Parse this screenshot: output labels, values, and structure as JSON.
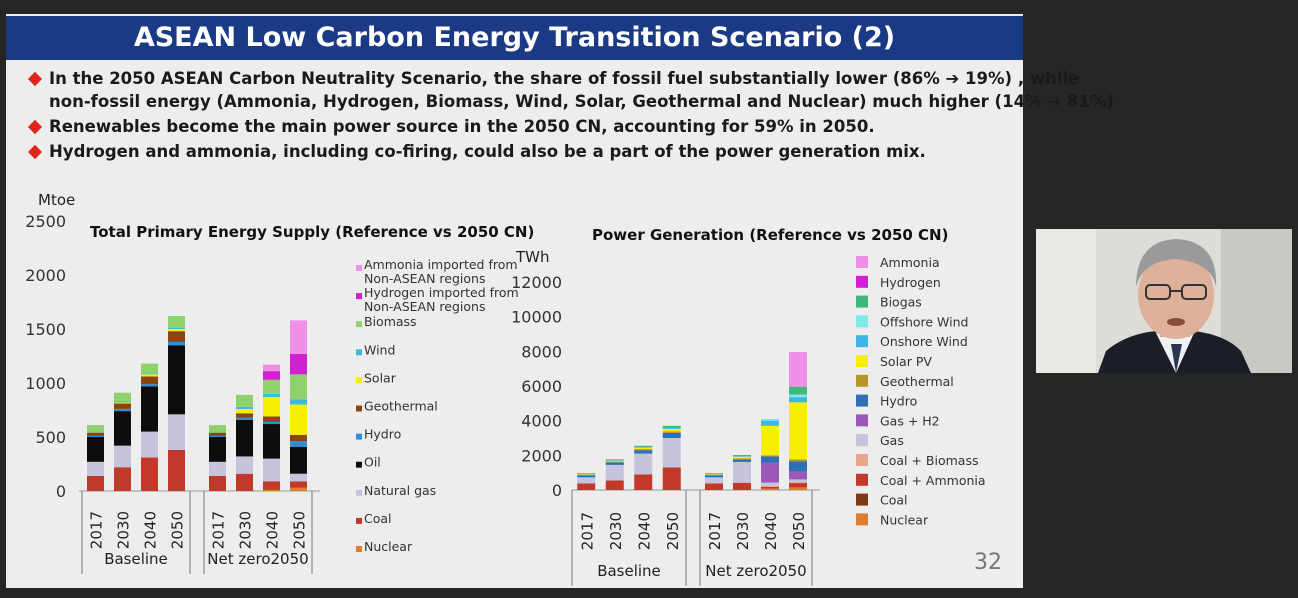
{
  "slide": {
    "title": "ASEAN Low Carbon Energy Transition Scenario (2)",
    "bullets": [
      [
        "In the 2050 ASEAN Carbon Neutrality Scenario, the share of fossil fuel substantially lower (86% ➔ 19%) , while",
        "non-fossil energy (Ammonia, Hydrogen, Biomass, Wind, Solar, Geothermal and Nuclear) much higher (14% ➔ 81%)"
      ],
      [
        "Renewables become the main power source in the 2050 CN, accounting for 59% in 2050."
      ],
      [
        "Hydrogen and ammonia, including co-firing, could also be a part of the power generation mix."
      ]
    ],
    "slide_number": "32"
  },
  "chart_data": [
    {
      "type": "bar",
      "stacked": true,
      "title": "Total Primary Energy Supply (Reference vs 2050 CN)",
      "ylabel": "Mtoe",
      "ylim": [
        0,
        2500
      ],
      "yticks": [
        0,
        500,
        1000,
        1500,
        2000,
        2500
      ],
      "groups": [
        {
          "name": "Baseline",
          "categories": [
            "2017",
            "2030",
            "2040",
            "2050"
          ]
        },
        {
          "name": "Net zero2050",
          "categories": [
            "2017",
            "2030",
            "2040",
            "2050"
          ]
        }
      ],
      "legend_position": "right",
      "series": [
        {
          "name": "Nuclear",
          "color": "#d9822b",
          "values": [
            0,
            0,
            0,
            0,
            0,
            0,
            10,
            30
          ]
        },
        {
          "name": "Coal",
          "color": "#c0392b",
          "values": [
            140,
            220,
            310,
            380,
            140,
            160,
            80,
            60
          ]
        },
        {
          "name": "Natural gas",
          "color": "#c6c4dc",
          "values": [
            130,
            200,
            240,
            330,
            130,
            160,
            210,
            70
          ]
        },
        {
          "name": "Oil",
          "color": "#0d0d0d",
          "values": [
            230,
            320,
            420,
            640,
            230,
            340,
            320,
            250
          ]
        },
        {
          "name": "Hydro",
          "color": "#2f8fd6",
          "values": [
            10,
            20,
            20,
            30,
            10,
            20,
            20,
            50
          ]
        },
        {
          "name": "Geothermal",
          "color": "#8b4513",
          "values": [
            30,
            50,
            70,
            100,
            30,
            40,
            50,
            60
          ]
        },
        {
          "name": "Solar",
          "color": "#f5f000",
          "values": [
            0,
            10,
            20,
            20,
            0,
            40,
            180,
            280
          ]
        },
        {
          "name": "Wind",
          "color": "#41b6e6",
          "values": [
            0,
            10,
            10,
            10,
            0,
            20,
            30,
            50
          ]
        },
        {
          "name": "Biomass",
          "color": "#8fd16b",
          "values": [
            70,
            80,
            90,
            110,
            70,
            110,
            130,
            230
          ]
        },
        {
          "name": "Hydrogen imported from Non-ASEAN regions",
          "color": "#d21fd2",
          "values": [
            0,
            0,
            0,
            0,
            0,
            0,
            80,
            190
          ]
        },
        {
          "name": "Ammonia imported from Non-ASEAN regions",
          "color": "#ef8fe8",
          "values": [
            0,
            0,
            0,
            0,
            0,
            0,
            60,
            310
          ]
        }
      ]
    },
    {
      "type": "bar",
      "stacked": true,
      "title": "Power Generation (Reference vs 2050 CN)",
      "ylabel": "TWh",
      "ylim": [
        0,
        12000
      ],
      "yticks": [
        0,
        2000,
        4000,
        6000,
        8000,
        10000,
        12000
      ],
      "groups": [
        {
          "name": "Baseline",
          "categories": [
            "2017",
            "2030",
            "2040",
            "2050"
          ]
        },
        {
          "name": "Net zero2050",
          "categories": [
            "2017",
            "2030",
            "2040",
            "2050"
          ]
        }
      ],
      "legend_position": "right",
      "series": [
        {
          "name": "Nuclear",
          "color": "#e07c2e",
          "values": [
            0,
            0,
            0,
            0,
            0,
            0,
            80,
            150
          ]
        },
        {
          "name": "Coal",
          "color": "#7a3b10",
          "values": [
            0,
            0,
            0,
            0,
            0,
            0,
            0,
            0
          ]
        },
        {
          "name": "Coal + Ammonia",
          "color": "#c0392b",
          "values": [
            380,
            550,
            900,
            1300,
            380,
            420,
            100,
            250
          ]
        },
        {
          "name": "Coal + Biomass",
          "color": "#e8a78c",
          "values": [
            0,
            0,
            0,
            0,
            0,
            0,
            50,
            60
          ]
        },
        {
          "name": "Gas",
          "color": "#c6c4dc",
          "values": [
            350,
            900,
            1200,
            1700,
            350,
            1200,
            200,
            150
          ]
        },
        {
          "name": "Gas + H2",
          "color": "#9b59b6",
          "values": [
            0,
            0,
            0,
            0,
            0,
            0,
            1150,
            450
          ]
        },
        {
          "name": "Hydro",
          "color": "#2e6fb5",
          "values": [
            120,
            150,
            200,
            300,
            120,
            150,
            350,
            600
          ]
        },
        {
          "name": "Geothermal",
          "color": "#b8972a",
          "values": [
            30,
            40,
            60,
            80,
            30,
            50,
            70,
            100
          ]
        },
        {
          "name": "Solar PV",
          "color": "#f5f000",
          "values": [
            30,
            50,
            80,
            150,
            30,
            100,
            1700,
            3300
          ]
        },
        {
          "name": "Onshore Wind",
          "color": "#41b6e6",
          "values": [
            10,
            20,
            30,
            50,
            10,
            30,
            300,
            300
          ]
        },
        {
          "name": "Offshore Wind",
          "color": "#7fe8e8",
          "values": [
            0,
            0,
            0,
            0,
            0,
            0,
            100,
            150
          ]
        },
        {
          "name": "Biogas",
          "color": "#3fb87a",
          "values": [
            50,
            60,
            80,
            120,
            50,
            70,
            0,
            450
          ]
        },
        {
          "name": "Hydrogen",
          "color": "#d21fd2",
          "values": [
            0,
            0,
            0,
            0,
            0,
            0,
            0,
            0
          ]
        },
        {
          "name": "Ammonia",
          "color": "#ef8fe8",
          "values": [
            0,
            0,
            0,
            0,
            0,
            0,
            0,
            2000
          ]
        }
      ]
    }
  ]
}
